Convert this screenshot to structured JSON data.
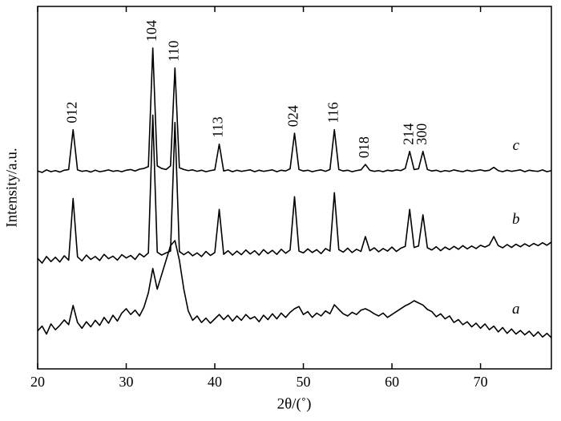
{
  "chart_data": {
    "type": "line",
    "xlabel": "2θ/(˚)",
    "ylabel": "Intensity/a.u.",
    "xlim": [
      20,
      78
    ],
    "ylim": [
      0,
      100
    ],
    "xticks": [
      20,
      30,
      40,
      50,
      60,
      70
    ],
    "x": [
      20,
      20.5,
      21,
      21.5,
      22,
      22.5,
      23,
      23.5,
      24,
      24.5,
      25,
      25.5,
      26,
      26.5,
      27,
      27.5,
      28,
      28.5,
      29,
      29.5,
      30,
      30.5,
      31,
      31.5,
      32,
      32.5,
      33,
      33.5,
      34,
      34.5,
      35,
      35.5,
      36,
      36.5,
      37,
      37.5,
      38,
      38.5,
      39,
      39.5,
      40,
      40.5,
      41,
      41.5,
      42,
      42.5,
      43,
      43.5,
      44,
      44.5,
      45,
      45.5,
      46,
      46.5,
      47,
      47.5,
      48,
      48.5,
      49,
      49.5,
      50,
      50.5,
      51,
      51.5,
      52,
      52.5,
      53,
      53.5,
      54,
      54.5,
      55,
      55.5,
      56,
      56.5,
      57,
      57.5,
      58,
      58.5,
      59,
      59.5,
      60,
      60.5,
      61,
      61.5,
      62,
      62.5,
      63,
      63.5,
      64,
      64.5,
      65,
      65.5,
      66,
      66.5,
      67,
      67.5,
      68,
      68.5,
      69,
      69.5,
      70,
      70.5,
      71,
      71.5,
      72,
      72.5,
      73,
      73.5,
      74,
      74.5,
      75,
      75.5,
      76,
      76.5,
      77,
      77.5,
      78
    ],
    "series": [
      {
        "name": "a",
        "color": "#000000",
        "values": [
          10.5,
          11.8,
          9.6,
          12.4,
          10.8,
          12.0,
          13.5,
          12.2,
          17.5,
          12.8,
          11.2,
          13.0,
          11.6,
          13.4,
          12.0,
          14.2,
          12.6,
          14.8,
          13.2,
          15.4,
          16.6,
          15.0,
          16.2,
          14.6,
          17.0,
          21,
          27.7,
          22,
          26,
          30,
          34,
          35.4,
          30,
          22,
          16,
          13.4,
          14.6,
          12.8,
          14.0,
          12.6,
          13.8,
          15.0,
          13.6,
          14.8,
          13.2,
          14.6,
          13.4,
          15.0,
          13.8,
          14.4,
          13.0,
          14.8,
          13.6,
          15.2,
          13.8,
          15.4,
          14.2,
          15.6,
          16.6,
          17.2,
          15.0,
          15.8,
          14.2,
          15.4,
          14.6,
          16.0,
          15.2,
          17.7,
          16.4,
          15.2,
          14.6,
          15.6,
          15.0,
          16.2,
          16.6,
          16.0,
          15.2,
          14.6,
          15.4,
          14.2,
          15.0,
          15.8,
          16.6,
          17.4,
          18.0,
          18.8,
          18.2,
          17.6,
          16.4,
          15.8,
          14.4,
          15.2,
          13.8,
          14.6,
          12.8,
          13.6,
          12.2,
          13.0,
          11.6,
          12.6,
          11.2,
          12.4,
          10.8,
          11.8,
          10.2,
          11.4,
          9.8,
          11.0,
          9.6,
          10.6,
          9.4,
          10.4,
          9.0,
          10.2,
          8.8,
          9.8,
          8.6
        ]
      },
      {
        "name": "b",
        "color": "#000000",
        "values": [
          30.5,
          29.2,
          31.0,
          29.6,
          30.8,
          29.5,
          31.2,
          30.0,
          47,
          30.9,
          29.8,
          31.4,
          30.2,
          31.0,
          29.9,
          31.6,
          30.4,
          31.1,
          30.0,
          31.5,
          30.6,
          31.3,
          30.2,
          31.8,
          30.9,
          32.0,
          70,
          32.2,
          31.4,
          32.0,
          32.5,
          68,
          32.4,
          31.5,
          32.3,
          31.2,
          32.0,
          31.0,
          32.4,
          31.3,
          32.1,
          44,
          31.6,
          32.6,
          31.4,
          32.5,
          31.5,
          32.8,
          31.7,
          32.6,
          31.4,
          32.9,
          31.8,
          32.7,
          31.6,
          33.0,
          31.9,
          32.8,
          47.5,
          32.5,
          32.0,
          33.1,
          32.1,
          32.9,
          31.8,
          33.2,
          32.5,
          48.6,
          32.9,
          32.2,
          33.3,
          32.1,
          33.0,
          32.4,
          36.5,
          32.6,
          33.4,
          32.3,
          33.2,
          32.5,
          33.6,
          32.4,
          33.3,
          33.8,
          44,
          33.5,
          33.9,
          42.5,
          33.4,
          32.8,
          33.7,
          32.6,
          33.6,
          32.9,
          33.8,
          33.0,
          34.0,
          33.1,
          33.9,
          33.2,
          34.1,
          33.6,
          34.2,
          36.5,
          34.0,
          33.4,
          34.3,
          33.5,
          34.4,
          33.7,
          34.5,
          33.8,
          34.6,
          34.0,
          34.8,
          34.1,
          35.0
        ]
      },
      {
        "name": "c",
        "color": "#000000",
        "values": [
          54.6,
          54.2,
          54.9,
          54.4,
          54.7,
          54.3,
          54.8,
          55.0,
          66,
          54.9,
          54.5,
          54.7,
          54.3,
          54.8,
          54.4,
          54.6,
          54.9,
          54.5,
          54.7,
          54.4,
          54.8,
          55.0,
          54.6,
          55.1,
          55.3,
          55.8,
          88.5,
          56.0,
          55.3,
          55.0,
          56,
          83,
          55.5,
          55.0,
          54.7,
          54.9,
          54.5,
          54.8,
          54.4,
          54.7,
          54.9,
          62,
          54.6,
          54.9,
          54.4,
          54.8,
          54.5,
          54.7,
          54.9,
          54.4,
          54.8,
          54.5,
          54.7,
          54.9,
          54.4,
          54.8,
          54.6,
          55.2,
          65,
          55.0,
          54.6,
          54.8,
          54.4,
          54.7,
          54.9,
          54.5,
          55.0,
          66,
          55.0,
          54.6,
          54.8,
          54.4,
          54.7,
          54.9,
          56.4,
          54.8,
          54.5,
          54.7,
          54.4,
          54.8,
          54.6,
          54.9,
          54.7,
          55.3,
          60,
          55.0,
          55.2,
          60,
          55.0,
          54.6,
          54.8,
          54.4,
          54.7,
          54.5,
          54.9,
          54.6,
          54.4,
          54.8,
          54.5,
          54.7,
          54.9,
          54.6,
          54.8,
          55.6,
          54.7,
          54.4,
          54.8,
          54.5,
          54.7,
          54.9,
          54.4,
          54.8,
          54.6,
          54.5,
          54.9,
          54.4,
          54.7
        ]
      }
    ],
    "annotations": [
      {
        "text": "012",
        "x": 24
      },
      {
        "text": "104",
        "x": 33
      },
      {
        "text": "110",
        "x": 35.5
      },
      {
        "text": "113",
        "x": 40.5
      },
      {
        "text": "024",
        "x": 49
      },
      {
        "text": "116",
        "x": 53.5
      },
      {
        "text": "018",
        "x": 57
      },
      {
        "text": "214",
        "x": 62
      },
      {
        "text": "300",
        "x": 63.5
      }
    ]
  }
}
